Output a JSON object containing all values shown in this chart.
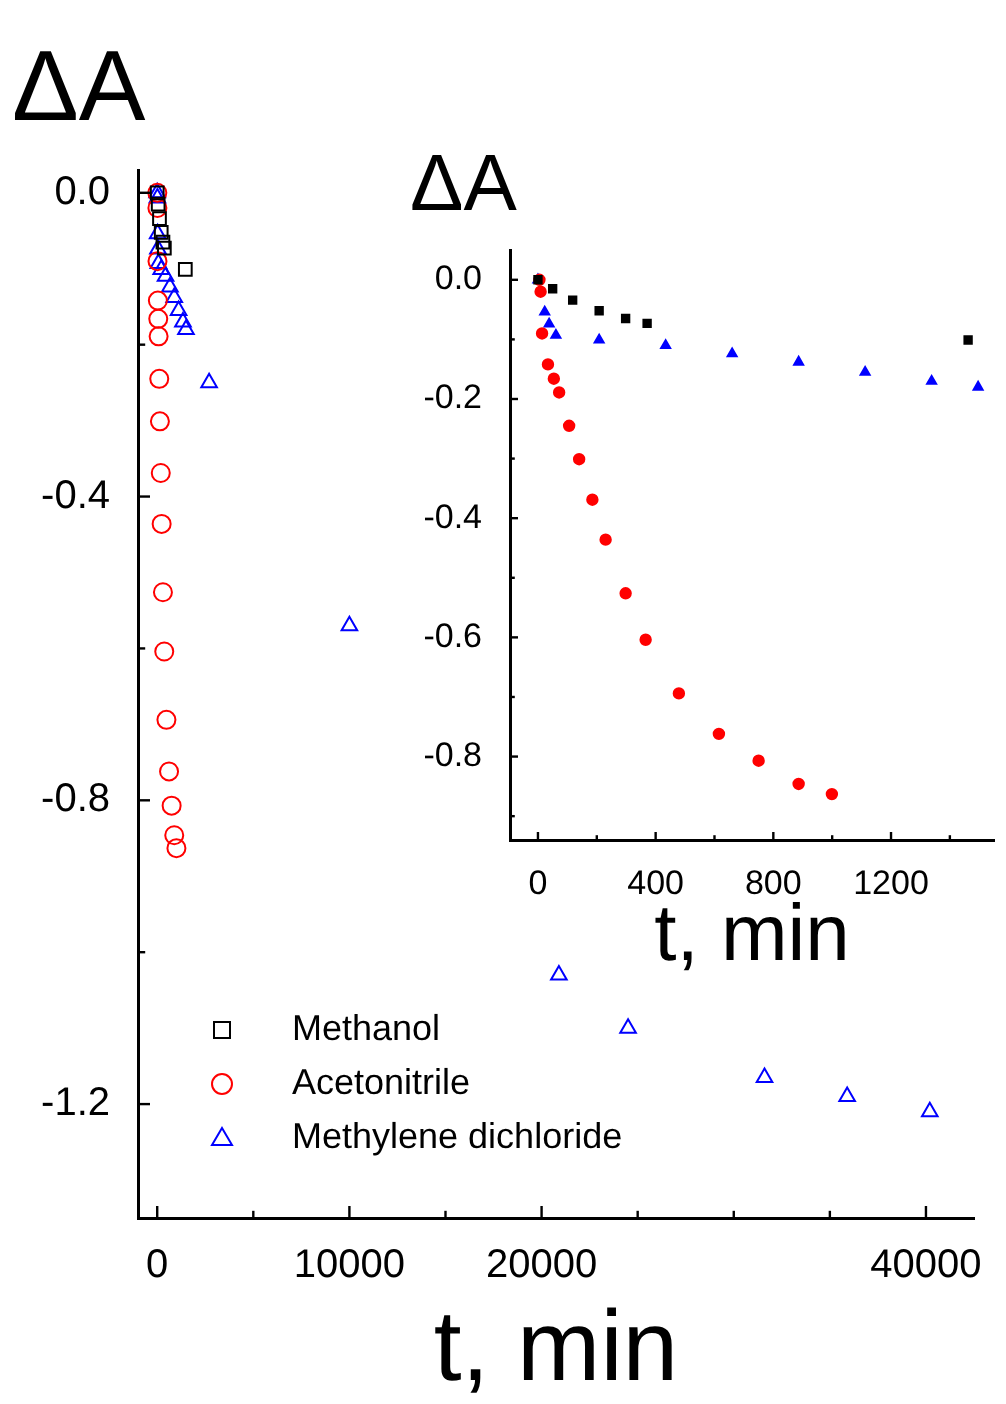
{
  "chart_data": [
    {
      "type": "scatter",
      "xlabel": "t, min",
      "ylabel": "ΔA",
      "legend": "bottom left",
      "grid": false,
      "xlim": [
        -1000,
        42500
      ],
      "ylim": [
        -1.35,
        0.03
      ],
      "xticks": [
        0,
        {
          "value": 5000,
          "label": null
        },
        10000,
        {
          "value": 15000,
          "label": null
        },
        20000,
        {
          "value": 25000,
          "label": null
        },
        {
          "value": 30000,
          "label": null
        },
        {
          "value": 35000,
          "label": null
        },
        40000
      ],
      "yticks": [
        {
          "value": 0,
          "label": "0.0"
        },
        {
          "value": -0.2,
          "label": null
        },
        -0.4,
        {
          "value": -0.6,
          "label": null
        },
        -0.8,
        {
          "value": -1.0,
          "label": null
        },
        -1.2
      ],
      "series": [
        {
          "name": "Methanol",
          "color": "#000000",
          "marker": "square",
          "x": [
            0,
            50,
            118,
            208,
            298,
            371,
            1462
          ],
          "values": [
            0,
            -0.015,
            -0.034,
            -0.052,
            -0.065,
            -0.073,
            -0.101
          ]
        },
        {
          "name": "Acetonitrile",
          "color": "#ff0000",
          "marker": "circle",
          "x": [
            5,
            9,
            14,
            34,
            54,
            72,
            106,
            140,
            185,
            230,
            298,
            366,
            479,
            615,
            750,
            886,
            999
          ],
          "values": [
            0,
            -0.02,
            -0.09,
            -0.142,
            -0.166,
            -0.189,
            -0.245,
            -0.301,
            -0.369,
            -0.436,
            -0.526,
            -0.604,
            -0.694,
            -0.762,
            -0.807,
            -0.846,
            -0.863
          ]
        },
        {
          "name": "Methylene dichloride",
          "color": "#0000ff",
          "marker": "triangle",
          "x": [
            0,
            9,
            23,
            38,
            61,
            208,
            434,
            660,
            886,
            1112,
            1338,
            1496,
            2700,
            10000,
            20900,
            24500,
            31600,
            35900,
            40200
          ],
          "values": [
            0,
            -0.007,
            -0.054,
            -0.074,
            -0.093,
            -0.101,
            -0.11,
            -0.124,
            -0.138,
            -0.155,
            -0.17,
            -0.18,
            -0.25,
            -0.57,
            -1.03,
            -1.1,
            -1.165,
            -1.19,
            -1.21
          ]
        }
      ]
    },
    {
      "type": "scatter",
      "xlabel": "t, min",
      "ylabel": "ΔA",
      "grid": false,
      "xlim": [
        -95,
        1550
      ],
      "ylim": [
        -0.94,
        0.05
      ],
      "xticks": [
        0,
        {
          "value": 200,
          "label": null
        },
        400,
        {
          "value": 600,
          "label": null
        },
        800,
        {
          "value": 1000,
          "label": null
        },
        1200,
        {
          "value": 1400,
          "label": null
        }
      ],
      "yticks": [
        {
          "value": 0,
          "label": "0.0"
        },
        {
          "value": -0.1,
          "label": null
        },
        -0.2,
        {
          "value": -0.3,
          "label": null
        },
        -0.4,
        {
          "value": -0.5,
          "label": null
        },
        -0.6,
        {
          "value": -0.7,
          "label": null
        },
        -0.8,
        {
          "value": -0.9,
          "label": null
        }
      ],
      "series": [
        {
          "color": "#000000",
          "marker": "square",
          "x": [
            0,
            50,
            118,
            208,
            298,
            371,
            1462
          ],
          "values": [
            0,
            -0.015,
            -0.034,
            -0.052,
            -0.065,
            -0.073,
            -0.101
          ]
        },
        {
          "color": "#ff0000",
          "marker": "circle",
          "x": [
            5,
            9,
            14,
            34,
            54,
            72,
            106,
            140,
            185,
            230,
            298,
            366,
            479,
            615,
            750,
            886,
            999
          ],
          "values": [
            0,
            -0.02,
            -0.09,
            -0.142,
            -0.166,
            -0.189,
            -0.245,
            -0.301,
            -0.369,
            -0.436,
            -0.526,
            -0.604,
            -0.694,
            -0.762,
            -0.807,
            -0.846,
            -0.863
          ]
        },
        {
          "color": "#0000ff",
          "marker": "triangle",
          "x": [
            0,
            9,
            23,
            38,
            61,
            208,
            434,
            660,
            886,
            1112,
            1338,
            1496
          ],
          "values": [
            0,
            null,
            -0.054,
            -0.074,
            -0.093,
            -0.101,
            -0.11,
            -0.124,
            -0.138,
            -0.155,
            -0.17,
            -0.18
          ]
        }
      ]
    }
  ]
}
